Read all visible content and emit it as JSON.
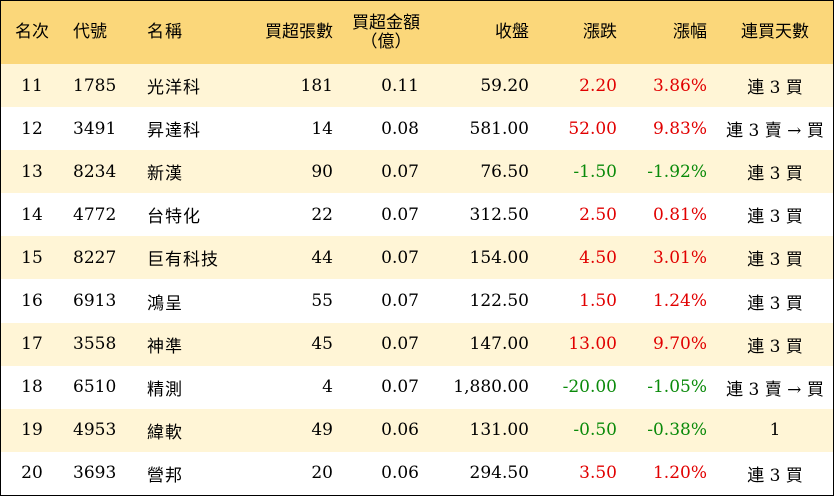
{
  "headers": {
    "rank": "名次",
    "code": "代號",
    "name": "名稱",
    "lots": "買超張數",
    "amount_line1": "買超金額",
    "amount_line2": "（億）",
    "close": "收盤",
    "change": "漲跌",
    "pct": "漲幅",
    "days": "連買天數"
  },
  "colors": {
    "up": "#e10000",
    "down": "#0a8a0a",
    "header_bg": "#fbd77a",
    "odd_row_bg": "#fff5d6"
  },
  "rows": [
    {
      "rank": "11",
      "code": "1785",
      "name": "光洋科",
      "lots": "181",
      "amount": "0.11",
      "close": "59.20",
      "change": "2.20",
      "pct": "3.86%",
      "trend": "up",
      "days": "連 3 買"
    },
    {
      "rank": "12",
      "code": "3491",
      "name": "昇達科",
      "lots": "14",
      "amount": "0.08",
      "close": "581.00",
      "change": "52.00",
      "pct": "9.83%",
      "trend": "up",
      "days": "連 3 賣 → 買"
    },
    {
      "rank": "13",
      "code": "8234",
      "name": "新漢",
      "lots": "90",
      "amount": "0.07",
      "close": "76.50",
      "change": "-1.50",
      "pct": "-1.92%",
      "trend": "down",
      "days": "連 3 買"
    },
    {
      "rank": "14",
      "code": "4772",
      "name": "台特化",
      "lots": "22",
      "amount": "0.07",
      "close": "312.50",
      "change": "2.50",
      "pct": "0.81%",
      "trend": "up",
      "days": "連 3 買"
    },
    {
      "rank": "15",
      "code": "8227",
      "name": "巨有科技",
      "lots": "44",
      "amount": "0.07",
      "close": "154.00",
      "change": "4.50",
      "pct": "3.01%",
      "trend": "up",
      "days": "連 3 買"
    },
    {
      "rank": "16",
      "code": "6913",
      "name": "鴻呈",
      "lots": "55",
      "amount": "0.07",
      "close": "122.50",
      "change": "1.50",
      "pct": "1.24%",
      "trend": "up",
      "days": "連 3 買"
    },
    {
      "rank": "17",
      "code": "3558",
      "name": "神準",
      "lots": "45",
      "amount": "0.07",
      "close": "147.00",
      "change": "13.00",
      "pct": "9.70%",
      "trend": "up",
      "days": "連 3 買"
    },
    {
      "rank": "18",
      "code": "6510",
      "name": "精測",
      "lots": "4",
      "amount": "0.07",
      "close": "1,880.00",
      "change": "-20.00",
      "pct": "-1.05%",
      "trend": "down",
      "days": "連 3 賣 → 買"
    },
    {
      "rank": "19",
      "code": "4953",
      "name": "緯軟",
      "lots": "49",
      "amount": "0.06",
      "close": "131.00",
      "change": "-0.50",
      "pct": "-0.38%",
      "trend": "down",
      "days": "1"
    },
    {
      "rank": "20",
      "code": "3693",
      "name": "營邦",
      "lots": "20",
      "amount": "0.06",
      "close": "294.50",
      "change": "3.50",
      "pct": "1.20%",
      "trend": "up",
      "days": "連 3 買"
    }
  ]
}
